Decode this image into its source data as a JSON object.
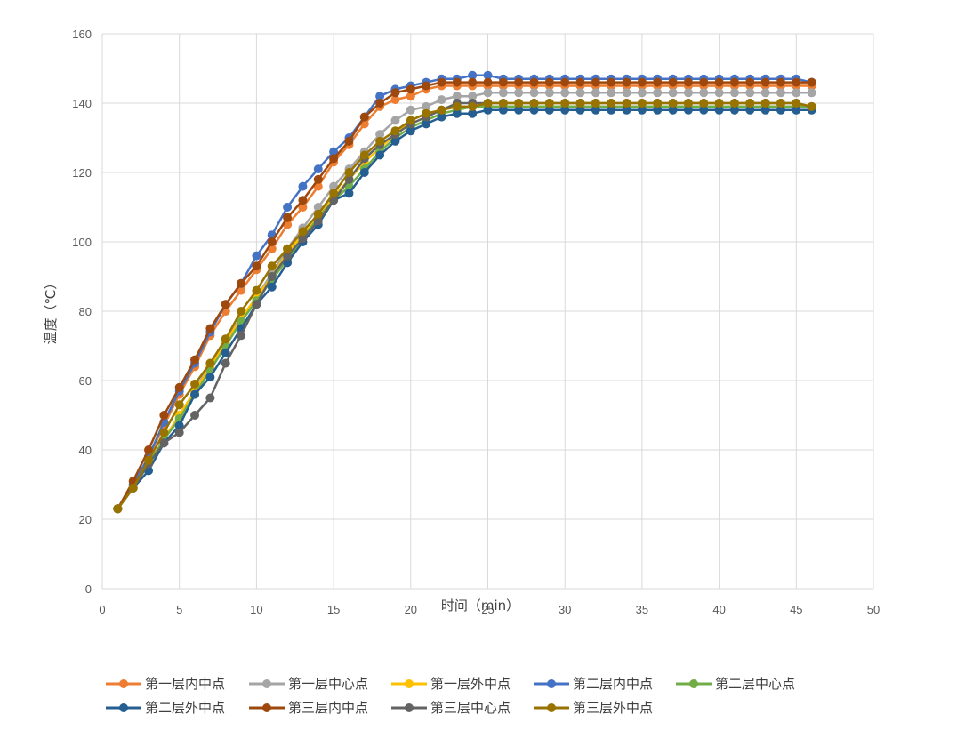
{
  "chart_data": {
    "type": "line",
    "xlabel": "时间（min）",
    "ylabel": "温度（℃）",
    "xlim": [
      0,
      50
    ],
    "ylim": [
      0,
      160
    ],
    "xticks": [
      0,
      5,
      10,
      15,
      20,
      25,
      30,
      35,
      40,
      45,
      50
    ],
    "yticks": [
      0,
      20,
      40,
      60,
      80,
      100,
      120,
      140,
      160
    ],
    "grid": true,
    "legend_position": "bottom",
    "x": [
      1,
      2,
      3,
      4,
      5,
      6,
      7,
      8,
      9,
      10,
      11,
      12,
      13,
      14,
      15,
      16,
      17,
      18,
      19,
      20,
      21,
      22,
      23,
      24,
      25,
      26,
      27,
      28,
      29,
      30,
      31,
      32,
      33,
      34,
      35,
      36,
      37,
      38,
      39,
      40,
      41,
      42,
      43,
      44,
      45,
      46
    ],
    "series": [
      {
        "name": "第一层内中点",
        "color": "#ED7D31",
        "values": [
          23,
          30,
          38,
          47,
          56,
          64,
          73,
          80,
          86,
          92,
          98,
          105,
          110,
          116,
          123,
          128,
          134,
          139,
          141,
          142,
          144,
          145,
          145,
          145,
          145,
          145,
          145,
          145,
          145,
          145,
          145,
          145,
          145,
          145,
          145,
          145,
          145,
          145,
          145,
          145,
          145,
          145,
          145,
          145,
          145,
          145
        ]
      },
      {
        "name": "第一层中心点",
        "color": "#A5A5A5",
        "values": [
          23,
          29,
          36,
          43,
          50,
          57,
          65,
          72,
          78,
          84,
          91,
          98,
          104,
          110,
          116,
          121,
          126,
          131,
          135,
          138,
          139,
          141,
          142,
          142,
          143,
          143,
          143,
          143,
          143,
          143,
          143,
          143,
          143,
          143,
          143,
          143,
          143,
          143,
          143,
          143,
          143,
          143,
          143,
          143,
          143,
          143
        ]
      },
      {
        "name": "第一层外中点",
        "color": "#FFC000",
        "values": [
          23,
          29,
          36,
          43,
          50,
          57,
          64,
          71,
          78,
          84,
          90,
          97,
          102,
          107,
          113,
          118,
          123,
          127,
          131,
          135,
          137,
          138,
          139,
          139,
          139,
          139,
          139,
          139,
          139,
          139,
          139,
          139,
          139,
          139,
          139,
          139,
          139,
          139,
          139,
          139,
          139,
          139,
          139,
          139,
          139,
          139
        ]
      },
      {
        "name": "第二层内中点",
        "color": "#4472C4",
        "values": [
          23,
          30,
          38,
          48,
          57,
          65,
          74,
          82,
          88,
          96,
          102,
          110,
          116,
          121,
          126,
          130,
          136,
          142,
          144,
          145,
          146,
          147,
          147,
          148,
          148,
          147,
          147,
          147,
          147,
          147,
          147,
          147,
          147,
          147,
          147,
          147,
          147,
          147,
          147,
          147,
          147,
          147,
          147,
          147,
          147,
          146
        ]
      },
      {
        "name": "第二层中心点",
        "color": "#70AD47",
        "values": [
          23,
          29,
          36,
          43,
          49,
          56,
          63,
          70,
          77,
          83,
          89,
          95,
          101,
          107,
          112,
          116,
          121,
          126,
          130,
          133,
          135,
          137,
          138,
          139,
          139,
          139,
          139,
          139,
          139,
          139,
          139,
          139,
          139,
          139,
          139,
          139,
          139,
          139,
          139,
          139,
          139,
          139,
          139,
          139,
          139,
          139
        ]
      },
      {
        "name": "第二层外中点",
        "color": "#255E91",
        "values": [
          23,
          29,
          34,
          42,
          47,
          56,
          61,
          68,
          75,
          82,
          87,
          94,
          100,
          105,
          112,
          114,
          120,
          125,
          129,
          132,
          134,
          136,
          137,
          137,
          138,
          138,
          138,
          138,
          138,
          138,
          138,
          138,
          138,
          138,
          138,
          138,
          138,
          138,
          138,
          138,
          138,
          138,
          138,
          138,
          138,
          138
        ]
      },
      {
        "name": "第三层内中点",
        "color": "#9E480E",
        "values": [
          23,
          31,
          40,
          50,
          58,
          66,
          75,
          82,
          88,
          93,
          100,
          107,
          112,
          118,
          124,
          129,
          136,
          140,
          143,
          144,
          145,
          146,
          146,
          146,
          146,
          146,
          146,
          146,
          146,
          146,
          146,
          146,
          146,
          146,
          146,
          146,
          146,
          146,
          146,
          146,
          146,
          146,
          146,
          146,
          146,
          146
        ]
      },
      {
        "name": "第三层中心点",
        "color": "#636363",
        "values": [
          23,
          29,
          36,
          42,
          45,
          50,
          55,
          65,
          73,
          82,
          90,
          96,
          101,
          106,
          112,
          118,
          124,
          128,
          131,
          134,
          136,
          138,
          140,
          140,
          140,
          140,
          140,
          140,
          140,
          140,
          140,
          140,
          140,
          140,
          140,
          140,
          140,
          140,
          140,
          140,
          140,
          140,
          140,
          140,
          140,
          139
        ]
      },
      {
        "name": "第三层外中点",
        "color": "#997300",
        "values": [
          23,
          29,
          37,
          45,
          53,
          59,
          65,
          72,
          80,
          86,
          93,
          98,
          103,
          108,
          114,
          120,
          125,
          129,
          132,
          135,
          137,
          138,
          139,
          139,
          140,
          140,
          140,
          140,
          140,
          140,
          140,
          140,
          140,
          140,
          140,
          140,
          140,
          140,
          140,
          140,
          140,
          140,
          140,
          140,
          140,
          139
        ]
      }
    ]
  }
}
